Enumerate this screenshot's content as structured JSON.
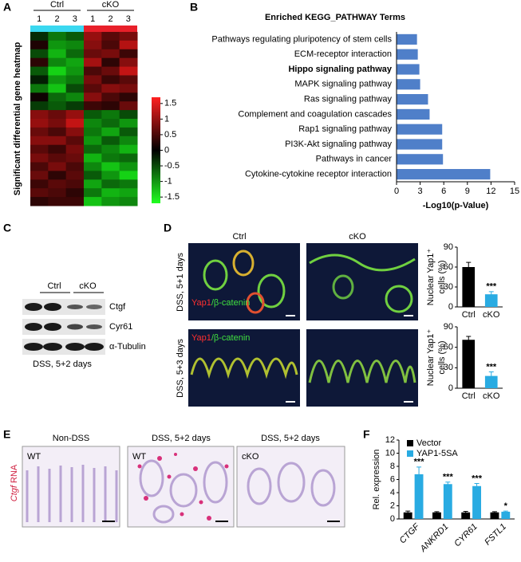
{
  "panel_labels": [
    "A",
    "B",
    "C",
    "D",
    "E",
    "F"
  ],
  "chart_data": [
    {
      "type": "heatmap",
      "ylabel": "Significant differential gene heatmap",
      "groups": [
        {
          "name": "Ctrl",
          "color": "#3ad8f0"
        },
        {
          "name": "cKO",
          "color": "#e8202a"
        }
      ],
      "column_labels": [
        "1",
        "2",
        "3",
        "1",
        "2",
        "3"
      ],
      "values": [
        [
          -0.3,
          -0.8,
          -0.6,
          1.0,
          0.6,
          0.8
        ],
        [
          0.2,
          -1.0,
          -0.9,
          0.9,
          0.5,
          1.2
        ],
        [
          -0.5,
          -1.2,
          -0.7,
          0.7,
          0.8,
          0.4
        ],
        [
          0.3,
          -0.9,
          -1.1,
          1.1,
          0.3,
          0.9
        ],
        [
          -0.6,
          -1.4,
          -1.0,
          0.5,
          0.7,
          1.3
        ],
        [
          -0.2,
          -1.0,
          -0.8,
          0.8,
          0.4,
          0.6
        ],
        [
          -0.8,
          -1.3,
          -0.5,
          0.6,
          0.9,
          0.8
        ],
        [
          0.1,
          -0.7,
          -0.9,
          0.9,
          0.5,
          0.3
        ],
        [
          -0.4,
          -0.6,
          -0.4,
          0.4,
          0.3,
          0.7
        ],
        [
          0.9,
          0.7,
          1.0,
          -0.6,
          -0.8,
          -0.5
        ],
        [
          1.0,
          0.8,
          1.3,
          -0.9,
          -0.7,
          -1.0
        ],
        [
          0.7,
          0.5,
          0.9,
          -0.8,
          -1.1,
          -0.6
        ],
        [
          0.9,
          0.9,
          0.6,
          -1.0,
          -0.6,
          -0.9
        ],
        [
          0.6,
          0.4,
          0.8,
          -0.7,
          -0.9,
          -1.2
        ],
        [
          0.8,
          0.6,
          0.7,
          -1.2,
          -0.8,
          -0.7
        ],
        [
          0.5,
          0.8,
          0.5,
          -0.9,
          -1.3,
          -1.0
        ],
        [
          0.7,
          0.3,
          0.6,
          -0.6,
          -1.0,
          -1.4
        ],
        [
          0.4,
          0.6,
          0.5,
          -1.1,
          -0.7,
          -0.8
        ],
        [
          0.6,
          0.5,
          0.3,
          -0.8,
          -1.2,
          -1.1
        ],
        [
          0.3,
          0.4,
          0.4,
          -1.3,
          -1.0,
          -0.9
        ]
      ],
      "colorbar_lim": [
        -1.7,
        1.7
      ],
      "colorbar_ticks": [
        1.5,
        1,
        0.5,
        0,
        -0.5,
        -1,
        -1.5
      ]
    },
    {
      "type": "bar",
      "orientation": "horizontal",
      "title": "Enriched KEGG_PATHWAY Terms",
      "xlabel": "-Log10(p-Value)",
      "categories": [
        "Pathways regulating pluripotency of stem cells",
        "ECM-receptor interaction",
        "Hippo signaling pathway",
        "MAPK signaling pathway",
        "Ras signaling pathway",
        "Complement and coagulation cascades",
        "Rap1 signaling pathway",
        "PI3K-Akt signaling pathway",
        "Pathways in cancer",
        "Cytokine-cytokine receptor interaction"
      ],
      "values": [
        2.6,
        2.7,
        2.9,
        3.0,
        4.0,
        4.2,
        5.8,
        5.8,
        5.9,
        11.9
      ],
      "color": "#4f7fc9",
      "highlight_index": 2,
      "highlight_color": "#e02020",
      "xlim": [
        0,
        15
      ],
      "xticks": [
        0,
        3,
        6,
        9,
        12,
        15
      ]
    },
    {
      "type": "bar",
      "ylabel": [
        "Nuclear Yap1⁺",
        "cells (%)"
      ],
      "categories": [
        "Ctrl",
        "cKO"
      ],
      "values": [
        60,
        19
      ],
      "errors": [
        7,
        4
      ],
      "colors": [
        "#000000",
        "#29abe2"
      ],
      "annotations": [
        null,
        "***"
      ],
      "ylim": [
        0,
        90
      ],
      "yticks": [
        0,
        30,
        60,
        90
      ]
    },
    {
      "type": "bar",
      "ylabel": [
        "Nuclear Yap1⁺",
        "cells (%)"
      ],
      "categories": [
        "Ctrl",
        "cKO"
      ],
      "values": [
        71,
        18
      ],
      "errors": [
        5,
        6
      ],
      "colors": [
        "#000000",
        "#29abe2"
      ],
      "annotations": [
        null,
        "***"
      ],
      "ylim": [
        0,
        90
      ],
      "yticks": [
        0,
        30,
        60,
        90
      ]
    },
    {
      "type": "bar",
      "ylabel": "Rel. expression",
      "categories": [
        "CTGF",
        "ANKRD1",
        "CYR61",
        "FSTL1"
      ],
      "series": [
        {
          "name": "Vector",
          "color": "#000000",
          "values": [
            1,
            1,
            1,
            1
          ],
          "errors": [
            0.2,
            0.1,
            0.15,
            0.1
          ]
        },
        {
          "name": "YAP1-5SA",
          "color": "#29abe2",
          "values": [
            6.8,
            5.3,
            5.0,
            1.1
          ],
          "errors": [
            1.1,
            0.3,
            0.4,
            0.1
          ]
        }
      ],
      "annotations": [
        "***",
        "***",
        "***",
        "*"
      ],
      "ylim": [
        0,
        12
      ],
      "yticks": [
        0,
        2,
        4,
        6,
        8,
        10,
        12
      ],
      "legend": "top-left"
    }
  ],
  "panel_c": {
    "groups": [
      "Ctrl",
      "cKO"
    ],
    "bands": [
      "Ctgf",
      "Cyr61",
      "α-Tubulin"
    ],
    "caption": "DSS, 5+2 days"
  },
  "panel_d": {
    "columns": [
      "Ctrl",
      "cKO"
    ],
    "rows": [
      "DSS, 5+1 days",
      "DSS, 5+3 days"
    ],
    "stain": [
      "Yap1",
      "/β-catenin"
    ]
  },
  "panel_e": {
    "ylabel": [
      "Ctgf",
      "RNA"
    ],
    "titles": [
      "Non-DSS",
      "DSS, 5+2 days",
      "DSS, 5+2 days"
    ],
    "genotypes": [
      "WT",
      "WT",
      "cKO"
    ]
  }
}
